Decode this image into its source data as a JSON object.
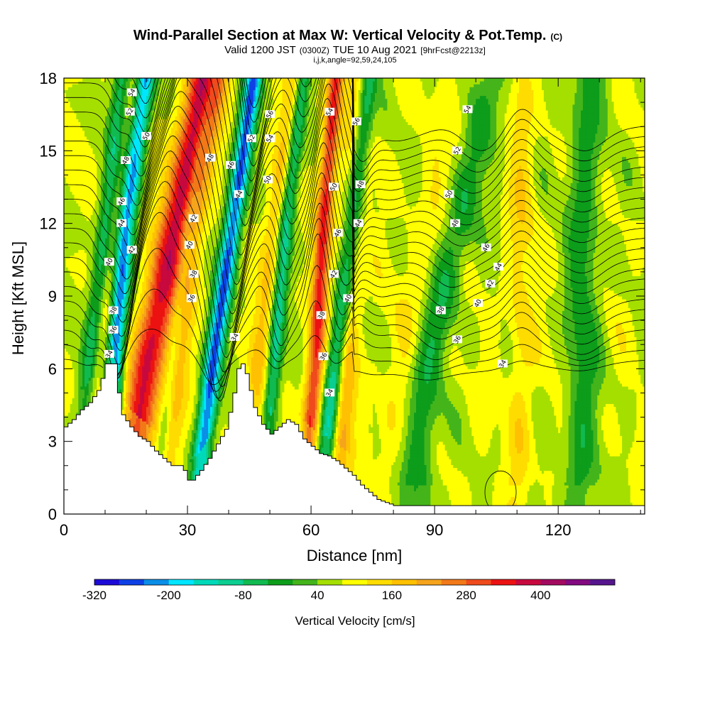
{
  "title": {
    "main": "Wind-Parallel Section at Max W: Vertical Velocity & Pot.Temp.",
    "copyright": "(C)",
    "valid_prefix": "Valid 1200 JST",
    "valid_utc": "(0300Z)",
    "valid_date": "TUE 10 Aug 2021",
    "forecast": "[9hrFcst@2213z]",
    "indices": "i,j,k,angle=92,59,24,105"
  },
  "chart_data": {
    "type": "heatmap",
    "xlabel": "Distance [nm]",
    "ylabel": "Height [Kft MSL]",
    "xlim": [
      0,
      141
    ],
    "ylim": [
      0,
      18
    ],
    "x_ticks": [
      "0",
      "30",
      "60",
      "90",
      "120"
    ],
    "x_tick_values": [
      0,
      30,
      60,
      90,
      120
    ],
    "y_ticks": [
      "0",
      "3",
      "6",
      "9",
      "12",
      "15",
      "18"
    ],
    "y_tick_values": [
      0,
      3,
      6,
      9,
      12,
      15,
      18
    ],
    "terrain_kft": {
      "x": [
        0,
        2,
        4,
        6,
        8,
        9,
        10,
        12,
        13,
        14,
        16,
        18,
        20,
        22,
        24,
        26,
        28,
        29,
        30,
        31,
        33,
        35,
        37,
        39,
        40,
        41,
        42,
        43,
        44,
        45,
        46,
        48,
        50,
        52,
        54,
        56,
        58,
        60,
        62,
        64,
        66,
        68,
        70,
        72,
        74,
        76,
        80,
        90,
        100,
        110,
        120,
        130,
        141
      ],
      "y": [
        3.6,
        3.9,
        4.3,
        4.6,
        5.1,
        5.6,
        6.2,
        6.2,
        5.0,
        4.1,
        3.6,
        3.2,
        3.0,
        2.6,
        2.3,
        2.0,
        2.0,
        1.8,
        1.4,
        1.4,
        1.8,
        2.3,
        2.9,
        3.5,
        4.2,
        5.0,
        6.0,
        6.2,
        5.8,
        5.1,
        4.4,
        3.7,
        3.3,
        3.6,
        3.9,
        3.7,
        3.1,
        2.8,
        2.5,
        2.4,
        2.2,
        1.9,
        1.6,
        1.2,
        0.9,
        0.6,
        0.35,
        0.35,
        0.35,
        0.35,
        0.35,
        0.35,
        0.35
      ]
    },
    "updrafts": [
      {
        "x": [
          15,
          20,
          27,
          34
        ],
        "w": 4.0,
        "peak": 320
      },
      {
        "x": [
          5,
          9,
          14,
          20
        ],
        "w": 2.5,
        "peak": 100
      },
      {
        "x": [
          24,
          27,
          31,
          37
        ],
        "w": 3.0,
        "peak": 160
      },
      {
        "x": [
          44,
          47,
          51,
          56
        ],
        "w": 2.5,
        "peak": 120
      },
      {
        "x": [
          58,
          61,
          63,
          66
        ],
        "w": 2.0,
        "peak": 280
      },
      {
        "x": [
          66,
          68,
          70,
          73
        ],
        "w": 3.0,
        "peak": 180
      },
      {
        "x": [
          78,
          82,
          90,
          100
        ],
        "w": 6.0,
        "peak": 60
      },
      {
        "x": [
          110,
          111,
          111,
          111
        ],
        "w": 3.0,
        "peak": 90
      }
    ],
    "downdrafts": [
      {
        "x": [
          11,
          12,
          15,
          20
        ],
        "w": 2.2,
        "peak": -320
      },
      {
        "x": [
          3,
          6,
          10,
          14
        ],
        "w": 2.0,
        "peak": -110
      },
      {
        "x": [
          32,
          36,
          41,
          46
        ],
        "w": 2.2,
        "peak": -300
      },
      {
        "x": [
          22,
          26,
          30,
          36
        ],
        "w": 1.8,
        "peak": -90
      },
      {
        "x": [
          48,
          51,
          54,
          58
        ],
        "w": 1.8,
        "peak": -150
      },
      {
        "x": [
          62,
          66,
          70,
          74
        ],
        "w": 2.3,
        "peak": -230
      },
      {
        "x": [
          85,
          88,
          96,
          104
        ],
        "w": 4.0,
        "peak": -90
      },
      {
        "x": [
          125,
          126,
          126,
          127
        ],
        "w": 4.0,
        "peak": -70
      }
    ],
    "contour_labels": [
      {
        "text": "54",
        "x": 16.5,
        "y": 17.4
      },
      {
        "text": "52",
        "x": 16.0,
        "y": 16.6
      },
      {
        "text": "50",
        "x": 20.0,
        "y": 15.6
      },
      {
        "text": "48",
        "x": 15.0,
        "y": 14.6
      },
      {
        "text": "46",
        "x": 14.0,
        "y": 12.9
      },
      {
        "text": "44",
        "x": 14.0,
        "y": 12.0
      },
      {
        "text": "42",
        "x": 16.5,
        "y": 10.9
      },
      {
        "text": "40",
        "x": 11.0,
        "y": 10.4
      },
      {
        "text": "38",
        "x": 12.0,
        "y": 8.4
      },
      {
        "text": "36",
        "x": 12.0,
        "y": 7.6
      },
      {
        "text": "34",
        "x": 11.0,
        "y": 6.6
      },
      {
        "text": "48",
        "x": 35.5,
        "y": 14.7
      },
      {
        "text": "46",
        "x": 40.5,
        "y": 14.4
      },
      {
        "text": "42",
        "x": 31.5,
        "y": 12.2
      },
      {
        "text": "40",
        "x": 30.5,
        "y": 11.1
      },
      {
        "text": "38",
        "x": 31.5,
        "y": 9.9
      },
      {
        "text": "36",
        "x": 31.0,
        "y": 8.9
      },
      {
        "text": "44",
        "x": 42.5,
        "y": 13.2
      },
      {
        "text": "34",
        "x": 41.5,
        "y": 7.3
      },
      {
        "text": "56",
        "x": 50.0,
        "y": 16.5
      },
      {
        "text": "52",
        "x": 45.5,
        "y": 15.5
      },
      {
        "text": "54",
        "x": 50.0,
        "y": 15.5
      },
      {
        "text": "50",
        "x": 49.5,
        "y": 13.8
      },
      {
        "text": "54",
        "x": 64.5,
        "y": 16.6
      },
      {
        "text": "50",
        "x": 65.5,
        "y": 13.5
      },
      {
        "text": "46",
        "x": 66.5,
        "y": 11.6
      },
      {
        "text": "42",
        "x": 65.5,
        "y": 9.9
      },
      {
        "text": "38",
        "x": 62.5,
        "y": 8.2
      },
      {
        "text": "36",
        "x": 63.0,
        "y": 6.5
      },
      {
        "text": "34",
        "x": 64.5,
        "y": 5.0
      },
      {
        "text": "56",
        "x": 71.0,
        "y": 16.2
      },
      {
        "text": "48",
        "x": 72.0,
        "y": 13.6
      },
      {
        "text": "44",
        "x": 71.5,
        "y": 12.0
      },
      {
        "text": "40",
        "x": 69.0,
        "y": 8.9
      },
      {
        "text": "54",
        "x": 98.0,
        "y": 16.7
      },
      {
        "text": "52",
        "x": 95.5,
        "y": 15.0
      },
      {
        "text": "50",
        "x": 93.5,
        "y": 13.2
      },
      {
        "text": "48",
        "x": 95.0,
        "y": 12.0
      },
      {
        "text": "46",
        "x": 102.5,
        "y": 11.0
      },
      {
        "text": "44",
        "x": 105.5,
        "y": 10.2
      },
      {
        "text": "42",
        "x": 103.5,
        "y": 9.5
      },
      {
        "text": "40",
        "x": 100.5,
        "y": 8.7
      },
      {
        "text": "38",
        "x": 91.5,
        "y": 8.4
      },
      {
        "text": "36",
        "x": 95.5,
        "y": 7.2
      },
      {
        "text": "34",
        "x": 106.5,
        "y": 6.2
      }
    ]
  },
  "colorbar": {
    "label": "Vertical Velocity [cm/s]",
    "tick_labels": [
      "-320",
      "-200",
      "-80",
      "40",
      "160",
      "280",
      "400"
    ],
    "levels_from": -320,
    "level_step": 40,
    "colors": [
      "#1c0bd7",
      "#0e40e6",
      "#0a8ee7",
      "#00e6ff",
      "#00d9b9",
      "#0bce90",
      "#11ba50",
      "#0d9d1b",
      "#44b41b",
      "#a5df00",
      "#ffff00",
      "#fedc00",
      "#fec000",
      "#f5a41c",
      "#f27918",
      "#ef4b1c",
      "#ec1212",
      "#c7093e",
      "#a20a5f",
      "#82097f",
      "#55158d"
    ]
  }
}
